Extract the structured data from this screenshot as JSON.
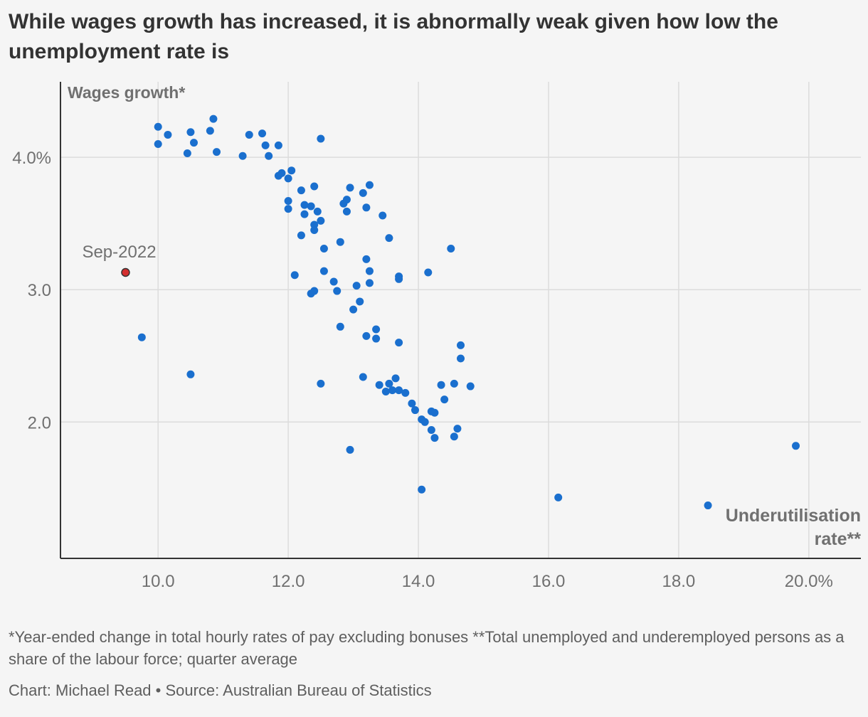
{
  "title": "While wages growth has increased, it is abnormally weak given how low the unemployment rate is",
  "footnote": "*Year-ended change in total hourly rates of pay excluding bonuses **Total unemployed and underemployed persons as a share of the labour force; quarter average",
  "credit": "Chart: Michael Read • Source: Australian Bureau of Statistics",
  "colors": {
    "point": "#1a6fce",
    "highlight": "#d42f2f",
    "grid": "#dcdcdc",
    "axis": "#333333",
    "tick_text": "#707070",
    "label_text": "#707070"
  },
  "chart_data": {
    "type": "scatter",
    "ylabel": "Wages growth*",
    "xlabel": "Underutilisation rate**",
    "xlabel_lines": [
      "Underutilisation",
      "rate**"
    ],
    "xlim": [
      8.5,
      20.8
    ],
    "ylim": [
      0.97,
      4.57
    ],
    "x_ticks": [
      10,
      12,
      14,
      16,
      18,
      20
    ],
    "x_tick_labels": [
      "10.0",
      "12.0",
      "14.0",
      "16.0",
      "18.0",
      "20.0%"
    ],
    "y_ticks": [
      2,
      3,
      4
    ],
    "y_tick_labels": [
      "2.0",
      "3.0",
      "4.0%"
    ],
    "grid": true,
    "highlight": {
      "label": "Sep-2022",
      "x": 9.5,
      "y": 3.13
    },
    "points": [
      [
        10.0,
        4.23
      ],
      [
        10.0,
        4.1
      ],
      [
        10.15,
        4.17
      ],
      [
        10.45,
        4.03
      ],
      [
        10.5,
        4.19
      ],
      [
        10.55,
        4.11
      ],
      [
        10.8,
        4.2
      ],
      [
        10.85,
        4.29
      ],
      [
        10.9,
        4.04
      ],
      [
        11.3,
        4.01
      ],
      [
        11.4,
        4.17
      ],
      [
        11.6,
        4.18
      ],
      [
        11.65,
        4.09
      ],
      [
        11.7,
        4.01
      ],
      [
        11.85,
        4.09
      ],
      [
        12.5,
        4.14
      ],
      [
        11.85,
        3.86
      ],
      [
        11.9,
        3.88
      ],
      [
        12.0,
        3.84
      ],
      [
        12.05,
        3.9
      ],
      [
        12.2,
        3.75
      ],
      [
        12.4,
        3.78
      ],
      [
        12.0,
        3.67
      ],
      [
        12.0,
        3.61
      ],
      [
        12.25,
        3.64
      ],
      [
        12.25,
        3.57
      ],
      [
        12.35,
        3.63
      ],
      [
        12.45,
        3.59
      ],
      [
        12.5,
        3.52
      ],
      [
        12.4,
        3.49
      ],
      [
        12.4,
        3.45
      ],
      [
        12.2,
        3.41
      ],
      [
        12.55,
        3.31
      ],
      [
        12.95,
        3.77
      ],
      [
        12.85,
        3.65
      ],
      [
        12.9,
        3.68
      ],
      [
        12.9,
        3.59
      ],
      [
        13.15,
        3.73
      ],
      [
        13.25,
        3.79
      ],
      [
        13.2,
        3.62
      ],
      [
        13.45,
        3.56
      ],
      [
        13.55,
        3.39
      ],
      [
        12.8,
        3.36
      ],
      [
        12.1,
        3.11
      ],
      [
        12.55,
        3.14
      ],
      [
        12.4,
        2.99
      ],
      [
        12.35,
        2.97
      ],
      [
        12.7,
        3.06
      ],
      [
        12.75,
        2.99
      ],
      [
        13.05,
        3.03
      ],
      [
        13.2,
        3.23
      ],
      [
        13.25,
        3.14
      ],
      [
        13.25,
        3.05
      ],
      [
        13.1,
        2.91
      ],
      [
        13.0,
        2.85
      ],
      [
        13.7,
        3.1
      ],
      [
        13.7,
        3.08
      ],
      [
        14.15,
        3.13
      ],
      [
        14.5,
        3.31
      ],
      [
        12.8,
        2.72
      ],
      [
        13.2,
        2.65
      ],
      [
        13.35,
        2.7
      ],
      [
        13.35,
        2.63
      ],
      [
        13.7,
        2.6
      ],
      [
        14.65,
        2.58
      ],
      [
        14.65,
        2.48
      ],
      [
        9.75,
        2.64
      ],
      [
        10.5,
        2.36
      ],
      [
        12.5,
        2.29
      ],
      [
        13.15,
        2.34
      ],
      [
        13.4,
        2.28
      ],
      [
        13.5,
        2.23
      ],
      [
        13.55,
        2.29
      ],
      [
        13.6,
        2.24
      ],
      [
        13.65,
        2.33
      ],
      [
        13.7,
        2.24
      ],
      [
        13.8,
        2.22
      ],
      [
        13.9,
        2.14
      ],
      [
        13.95,
        2.09
      ],
      [
        14.35,
        2.28
      ],
      [
        14.4,
        2.17
      ],
      [
        14.55,
        2.29
      ],
      [
        14.8,
        2.27
      ],
      [
        14.05,
        2.02
      ],
      [
        14.1,
        2.0
      ],
      [
        14.2,
        2.08
      ],
      [
        14.25,
        2.07
      ],
      [
        14.2,
        1.94
      ],
      [
        14.25,
        1.88
      ],
      [
        14.55,
        1.89
      ],
      [
        14.6,
        1.95
      ],
      [
        12.95,
        1.79
      ],
      [
        14.05,
        1.49
      ],
      [
        16.15,
        1.43
      ],
      [
        19.8,
        1.82
      ],
      [
        18.45,
        1.37
      ]
    ]
  }
}
